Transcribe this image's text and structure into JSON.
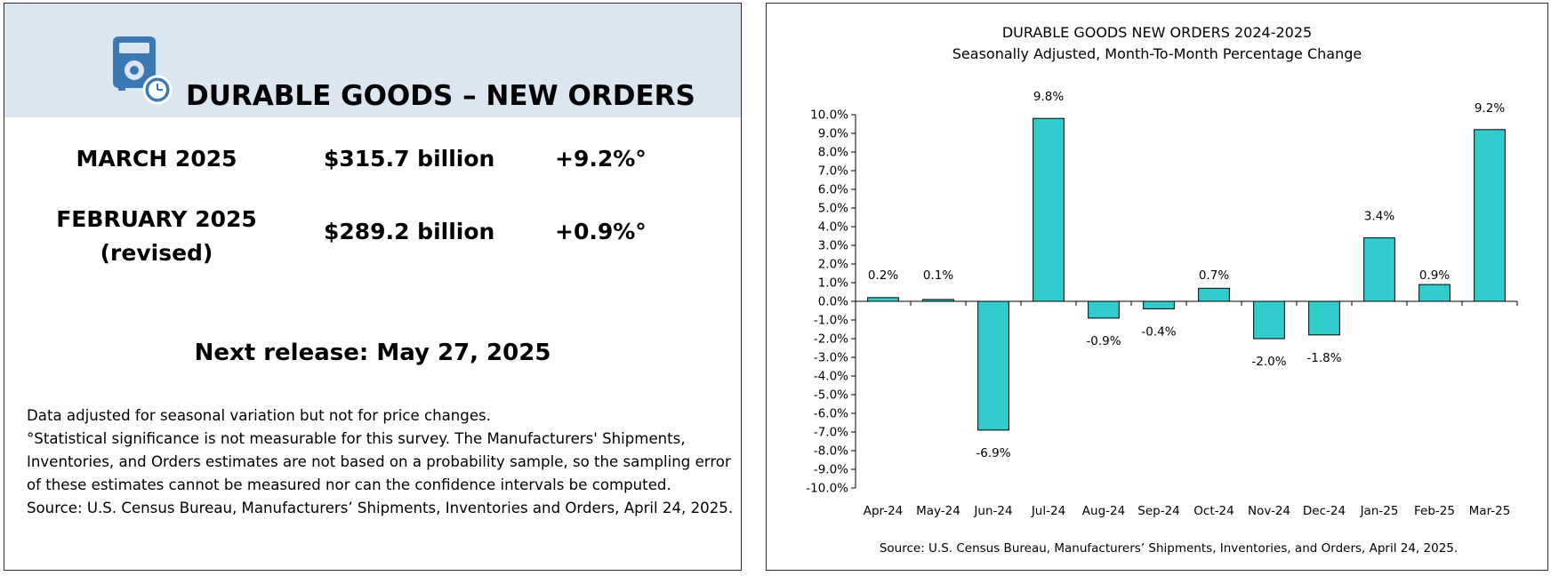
{
  "left": {
    "title": "DURABLE GOODS – NEW ORDERS",
    "rows": [
      {
        "label": "MARCH 2025",
        "value": "$315.7 billion",
        "change": "+9.2%°"
      },
      {
        "label_line1": "FEBRUARY 2025",
        "label_line2": "(revised)",
        "value": "$289.2 billion",
        "change": "+0.9%°"
      }
    ],
    "next_release": "Next release:  May 27, 2025",
    "notes": [
      "Data adjusted for seasonal variation but not for price changes.",
      "°Statistical significance is not measurable for this survey.  The Manufacturers' Shipments, Inventories, and Orders estimates are not based on a probability sample, so the sampling error of these estimates cannot be measured nor can the confidence intervals be computed.",
      "Source: U.S. Census Bureau, Manufacturers’ Shipments, Inventories and Orders, April 24, 2025."
    ]
  },
  "colors": {
    "header_bg": "#dce6f1",
    "icon_blue": "#3c78b4",
    "bar_fill": "#33cccc"
  },
  "icon": "factory-clock-icon",
  "chart_data": {
    "type": "bar",
    "title": "DURABLE GOODS NEW ORDERS 2024-2025",
    "subtitle": "Seasonally Adjusted,  Month-To-Month Percentage Change",
    "categories": [
      "Apr-24",
      "May-24",
      "Jun-24",
      "Jul-24",
      "Aug-24",
      "Sep-24",
      "Oct-24",
      "Nov-24",
      "Dec-24",
      "Jan-25",
      "Feb-25",
      "Mar-25"
    ],
    "values": [
      0.2,
      0.1,
      -6.9,
      9.8,
      -0.9,
      -0.4,
      0.7,
      -2.0,
      -1.8,
      3.4,
      0.9,
      9.2
    ],
    "data_labels": [
      "0.2%",
      "0.1%",
      "-6.9%",
      "9.8%",
      "-0.9%",
      "-0.4%",
      "0.7%",
      "-2.0%",
      "-1.8%",
      "3.4%",
      "0.9%",
      "9.2%"
    ],
    "y_ticks": [
      "10.0%",
      "9.0%",
      "8.0%",
      "7.0%",
      "6.0%",
      "5.0%",
      "4.0%",
      "3.0%",
      "2.0%",
      "1.0%",
      "0.0%",
      "-1.0%",
      "-2.0%",
      "-3.0%",
      "-4.0%",
      "-5.0%",
      "-6.0%",
      "-7.0%",
      "-8.0%",
      "-9.0%",
      "-10.0%"
    ],
    "ylim": [
      -10,
      10
    ],
    "xlabel": "",
    "ylabel": "",
    "grid": false,
    "source": "Source: U.S. Census Bureau, Manufacturers’ Shipments, Inventories, and Orders, April 24, 2025."
  }
}
